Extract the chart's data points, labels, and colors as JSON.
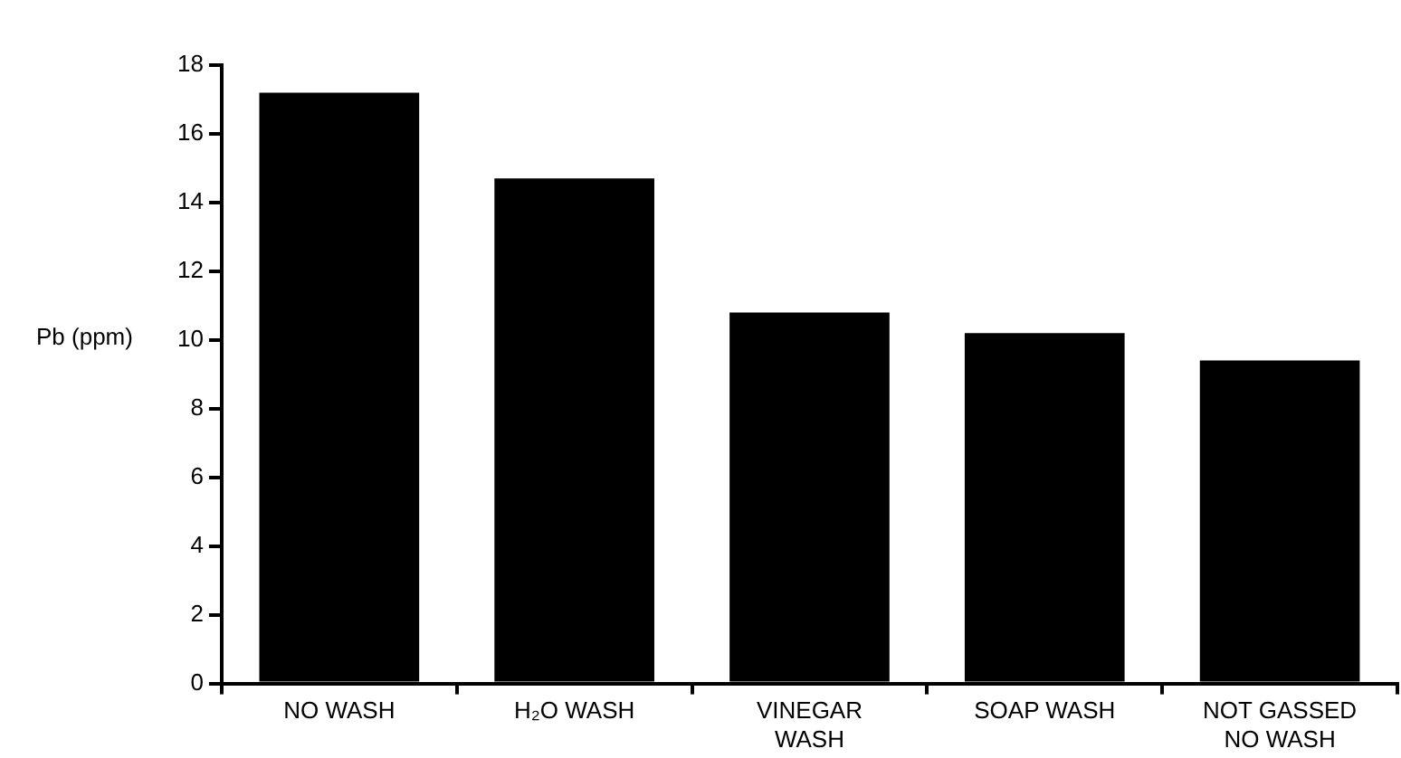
{
  "chart_data": {
    "type": "bar",
    "ylabel": "Pb (ppm)",
    "categories": [
      "NO WASH",
      "H₂O WASH",
      "VINEGAR\nWASH",
      "SOAP WASH",
      "NOT GASSED\nNO WASH"
    ],
    "values": [
      17.2,
      14.7,
      10.8,
      10.2,
      9.4
    ],
    "color": "#000000",
    "ylim": [
      0,
      18
    ],
    "yticks": [
      0,
      2,
      4,
      6,
      8,
      10,
      12,
      14,
      16,
      18
    ],
    "grid": false,
    "legend": false
  }
}
